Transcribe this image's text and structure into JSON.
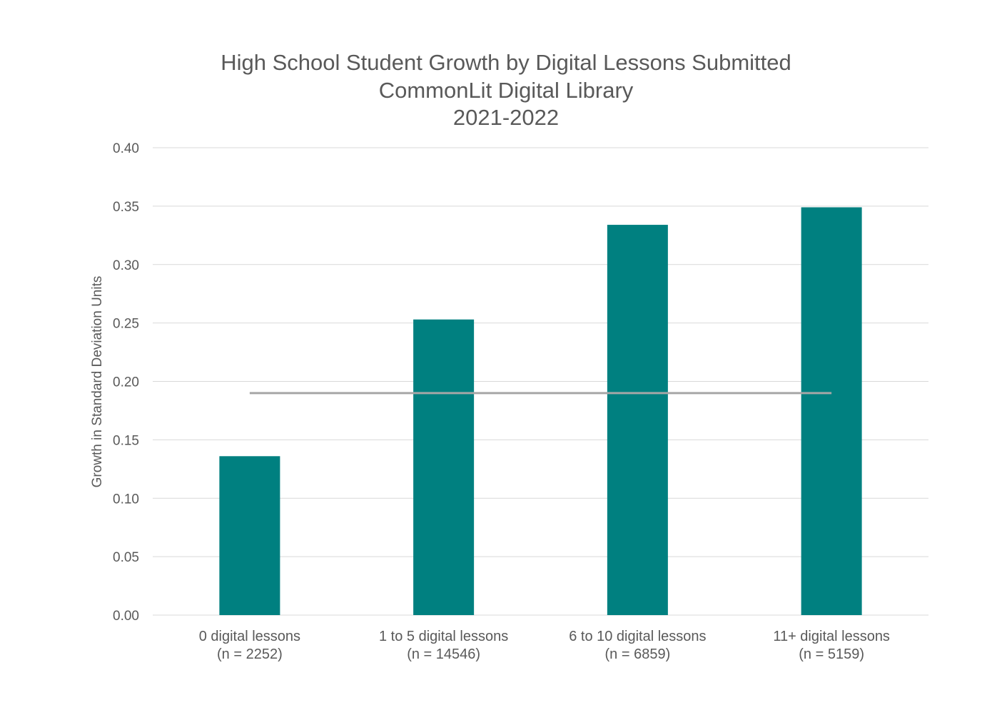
{
  "chart_data": {
    "type": "bar",
    "title_lines": [
      "High School Student Growth by Digital Lessons Submitted",
      "CommonLit Digital Library",
      "2021-2022"
    ],
    "ylabel": "Growth in Standard Deviation Units",
    "xlabel": "",
    "ylim": [
      0,
      0.4
    ],
    "yticks": [
      "0.00",
      "0.05",
      "0.10",
      "0.15",
      "0.20",
      "0.25",
      "0.30",
      "0.35",
      "0.40"
    ],
    "categories": [
      {
        "line1": "0 digital lessons",
        "line2": "(n = 2252)"
      },
      {
        "line1": "1 to 5 digital lessons",
        "line2": "(n = 14546)"
      },
      {
        "line1": "6 to 10 digital lessons",
        "line2": "(n = 6859)"
      },
      {
        "line1": "11+ digital lessons",
        "line2": "(n = 5159)"
      }
    ],
    "values": [
      0.136,
      0.253,
      0.334,
      0.349
    ],
    "reference_line": 0.19,
    "grid": true,
    "legend": "none",
    "colors": {
      "bar": "#008080",
      "reference_line": "#a6a6a6",
      "grid": "#d9d9d9",
      "text": "#595959"
    }
  }
}
